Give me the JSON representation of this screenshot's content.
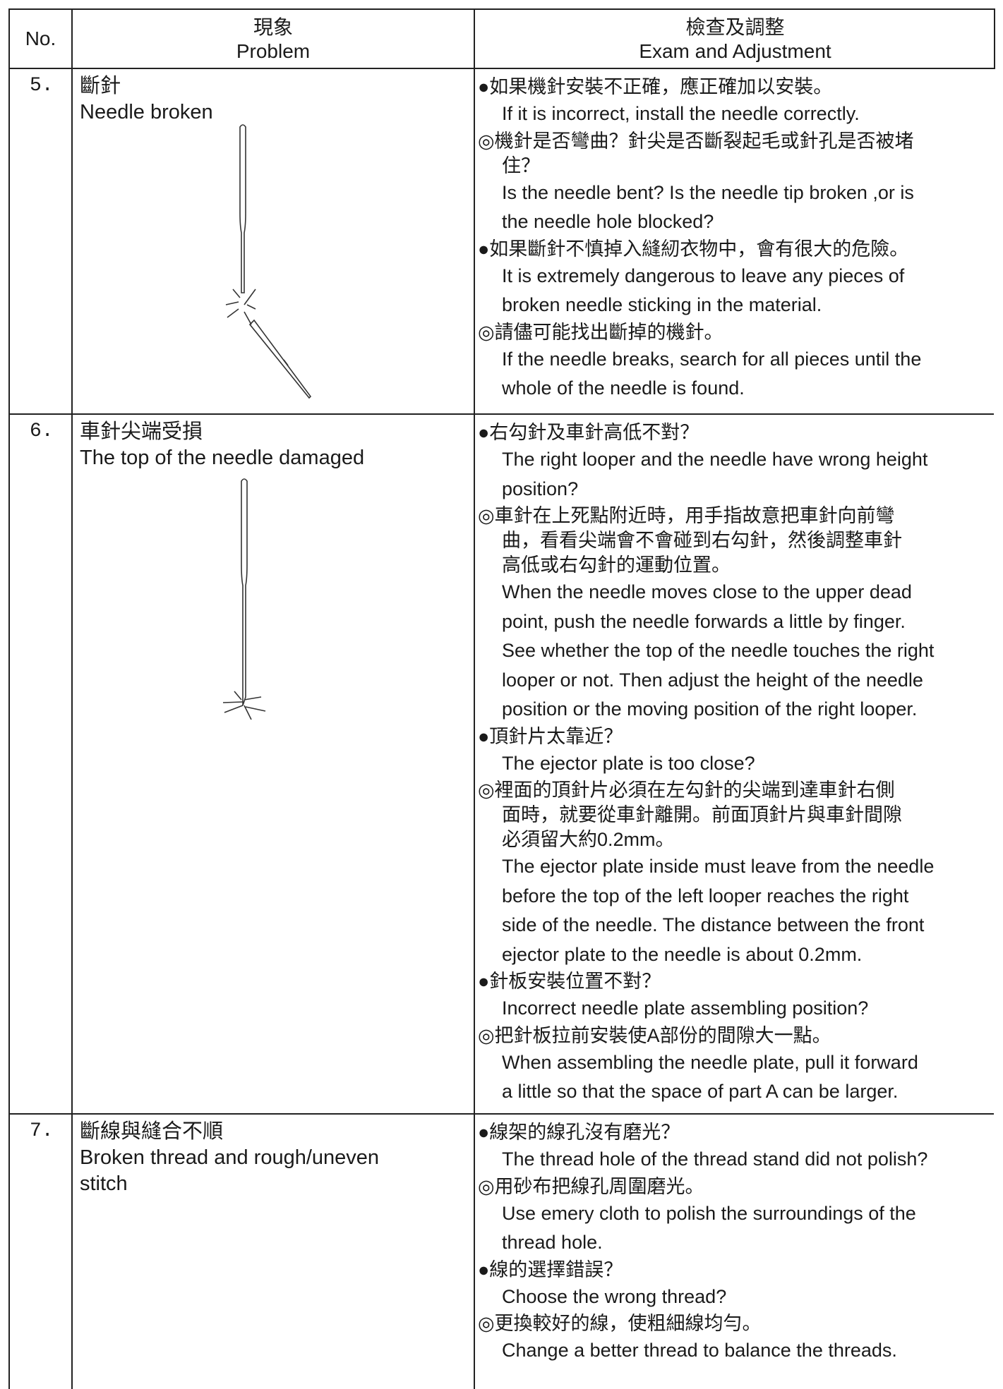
{
  "header": {
    "no": "No.",
    "problem_zh": "現象",
    "problem_en": "Problem",
    "exam_zh": "檢查及調整",
    "exam_en": "Exam and Adjustment"
  },
  "rows": [
    {
      "no": "5.",
      "problem": [
        "斷針",
        "Needle broken"
      ],
      "exam": [
        "●如果機針安裝不正確，應正確加以安裝。",
        "If it is incorrect, install the needle correctly.",
        "◎機針是否彎曲？針尖是否斷裂起毛或針孔是否被堵",
        "住？",
        "Is the needle bent? Is the needle tip broken ,or is",
        "the needle hole blocked?",
        "●如果斷針不慎掉入縫紉衣物中，會有很大的危險。",
        "It is extremely dangerous to leave any pieces of",
        "broken needle sticking in the material.",
        "◎請儘可能找出斷掉的機針。",
        "If the needle breaks, search for all pieces until the",
        "whole of the needle is found."
      ]
    },
    {
      "no": "6.",
      "problem": [
        "車針尖端受損",
        "The top of the needle damaged"
      ],
      "exam": [
        "●右勾針及車針高低不對？",
        "The right looper and the needle have wrong height",
        "position?",
        "◎車針在上死點附近時，用手指故意把車針向前彎",
        "曲，看看尖端會不會碰到右勾針，然後調整車針",
        "高低或右勾針的運動位置。",
        "When the needle moves close to the upper dead",
        "point, push the needle forwards a little by finger.",
        "See whether the top of the needle touches the right",
        "looper or not. Then adjust the height of the needle",
        "position or the moving position of the right looper.",
        "●頂針片太靠近？",
        "The ejector plate is too close?",
        "◎裡面的頂針片必須在左勾針的尖端到達車針右側",
        "面時，就要從車針離開。前面頂針片與車針間隙",
        "必須留大約0.2mm。",
        "The ejector plate inside must leave from the needle",
        "before the top of the left looper reaches the right",
        "side of the needle. The distance between the front",
        "ejector plate to the needle is about 0.2mm.",
        "●針板安裝位置不對？",
        "Incorrect needle plate assembling position?",
        "◎把針板拉前安裝使A部份的間隙大一點。",
        "When assembling the needle plate, pull it forward",
        "a little so that the space of part A can be larger."
      ]
    },
    {
      "no": "7.",
      "problem": [
        "斷線與縫合不順",
        "Broken thread and rough/uneven",
        "stitch"
      ],
      "exam": [
        "●線架的線孔沒有磨光？",
        "The thread hole of the thread stand did not polish?",
        "◎用砂布把線孔周圍磨光。",
        "Use emery cloth to polish the surroundings of the",
        "thread hole.",
        "●線的選擇錯誤？",
        "Choose the wrong thread?",
        "◎更換較好的線，使粗細線均勻。",
        "Change a better thread to balance the threads."
      ]
    }
  ]
}
